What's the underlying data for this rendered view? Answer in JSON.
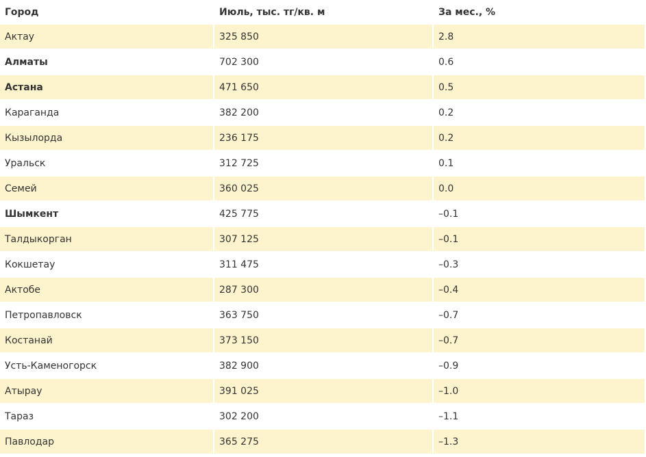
{
  "table": {
    "headers": [
      "Город",
      "Июль, тыс. тг/кв. м",
      "За мес., %"
    ],
    "rows": [
      {
        "city": "Актау",
        "price": "325 850",
        "change": "2.8",
        "bold": false
      },
      {
        "city": "Алматы",
        "price": "702 300",
        "change": "0.6",
        "bold": true
      },
      {
        "city": "Астана",
        "price": "471 650",
        "change": "0.5",
        "bold": true
      },
      {
        "city": "Караганда",
        "price": "382 200",
        "change": "0.2",
        "bold": false
      },
      {
        "city": "Кызылорда",
        "price": "236 175",
        "change": "0.2",
        "bold": false
      },
      {
        "city": "Уральск",
        "price": "312 725",
        "change": "0.1",
        "bold": false
      },
      {
        "city": "Семей",
        "price": "360 025",
        "change": "0.0",
        "bold": false
      },
      {
        "city": "Шымкент",
        "price": "425 775",
        "change": "–0.1",
        "bold": true
      },
      {
        "city": "Талдыкорган",
        "price": "307 125",
        "change": "–0.1",
        "bold": false
      },
      {
        "city": "Кокшетау",
        "price": "311 475",
        "change": "–0.3",
        "bold": false
      },
      {
        "city": "Актобе",
        "price": "287 300",
        "change": "–0.4",
        "bold": false
      },
      {
        "city": "Петропавловск",
        "price": "363 750",
        "change": "–0.7",
        "bold": false
      },
      {
        "city": "Костанай",
        "price": "373 150",
        "change": "–0.7",
        "bold": false
      },
      {
        "city": "Усть-Каменогорск",
        "price": "382 900",
        "change": "–0.9",
        "bold": false
      },
      {
        "city": "Атырау",
        "price": "391 025",
        "change": "–1.0",
        "bold": false
      },
      {
        "city": "Тараз",
        "price": "302 200",
        "change": "–1.1",
        "bold": false
      },
      {
        "city": "Павлодар",
        "price": "365 275",
        "change": "–1.3",
        "bold": false
      }
    ]
  },
  "colors": {
    "stripe": "#fdf3cd",
    "text": "#333333"
  }
}
